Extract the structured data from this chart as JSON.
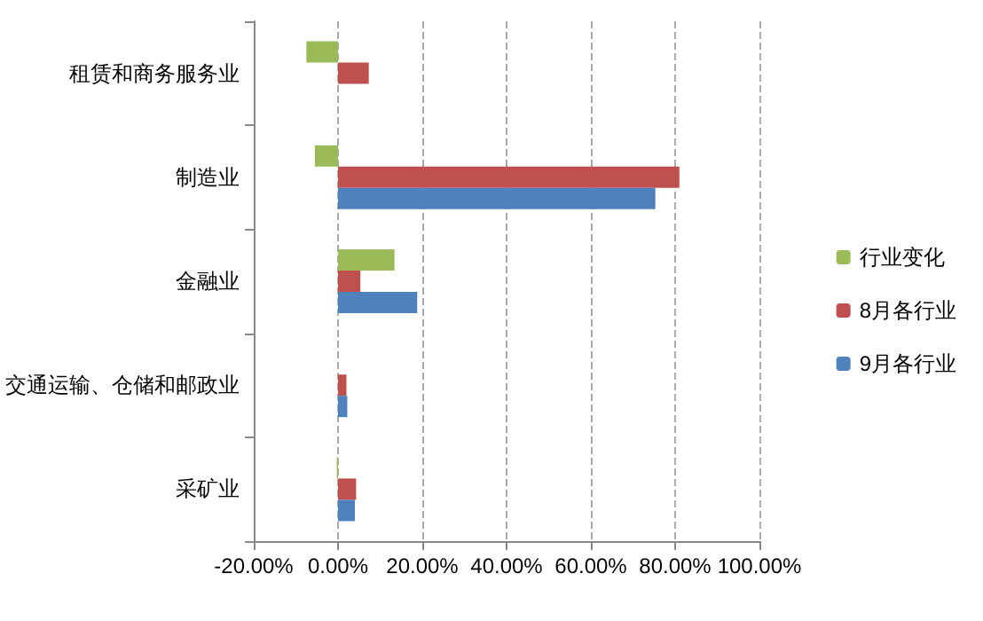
{
  "chart_data": {
    "type": "bar",
    "orientation": "horizontal",
    "categories": [
      "租赁和商务服务业",
      "制造业",
      "金融业",
      "交通运输、仓储和邮政业",
      "采矿业"
    ],
    "series": [
      {
        "name": "行业变化",
        "color": "#9bbb59",
        "values": [
          -7.5,
          -5.5,
          13.4,
          0,
          -0.3
        ]
      },
      {
        "name": "8月各行业",
        "color": "#c0504d",
        "values": [
          7.3,
          81,
          5.3,
          2,
          4.3
        ]
      },
      {
        "name": "9月各行业",
        "color": "#4f81bd",
        "values": [
          null,
          75.3,
          18.8,
          2.2,
          4
        ]
      }
    ],
    "xlim": [
      -20,
      100
    ],
    "xticks": [
      {
        "value": -20,
        "label": "-20.00%"
      },
      {
        "value": 0,
        "label": "0.00%"
      },
      {
        "value": 20,
        "label": "20.00%"
      },
      {
        "value": 40,
        "label": "40.00%"
      },
      {
        "value": 60,
        "label": "60.00%"
      },
      {
        "value": 80,
        "label": "80.00%"
      },
      {
        "value": 100,
        "label": "100.00%"
      }
    ],
    "grid": "x",
    "legend": "right"
  }
}
